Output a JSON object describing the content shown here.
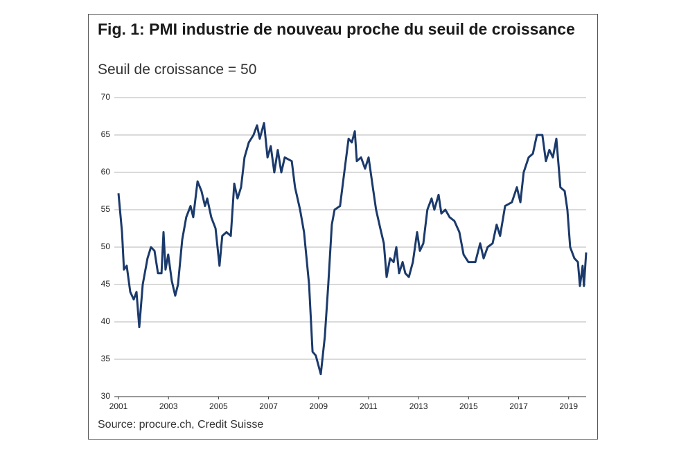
{
  "chart_data": {
    "type": "line",
    "title": "Fig. 1: PMI industrie de nouveau proche du seuil de croissance",
    "subtitle": "Seuil de croissance = 50",
    "source": "Source: procure.ch, Credit Suisse",
    "x": [
      2001.0,
      2001.14,
      2001.22,
      2001.33,
      2001.47,
      2001.61,
      2001.72,
      2001.83,
      2001.97,
      2002.16,
      2002.3,
      2002.44,
      2002.58,
      2002.72,
      2002.8,
      2002.88,
      2002.99,
      2003.13,
      2003.27,
      2003.38,
      2003.55,
      2003.71,
      2003.88,
      2003.99,
      2004.16,
      2004.32,
      2004.46,
      2004.55,
      2004.71,
      2004.88,
      2005.04,
      2005.15,
      2005.32,
      2005.49,
      2005.63,
      2005.76,
      2005.9,
      2006.04,
      2006.21,
      2006.4,
      2006.54,
      2006.65,
      2006.82,
      2006.96,
      2007.09,
      2007.23,
      2007.37,
      2007.51,
      2007.65,
      2007.93,
      2008.06,
      2008.26,
      2008.42,
      2008.62,
      2008.76,
      2008.89,
      2009.09,
      2009.25,
      2009.39,
      2009.53,
      2009.64,
      2009.86,
      2010.03,
      2010.2,
      2010.33,
      2010.45,
      2010.53,
      2010.7,
      2010.86,
      2011.0,
      2011.17,
      2011.3,
      2011.47,
      2011.61,
      2011.72,
      2011.86,
      2012.0,
      2012.11,
      2012.22,
      2012.36,
      2012.47,
      2012.61,
      2012.77,
      2012.94,
      2013.05,
      2013.19,
      2013.35,
      2013.52,
      2013.63,
      2013.8,
      2013.91,
      2014.07,
      2014.24,
      2014.43,
      2014.63,
      2014.8,
      2014.99,
      2015.27,
      2015.46,
      2015.6,
      2015.76,
      2015.96,
      2016.12,
      2016.26,
      2016.46,
      2016.73,
      2016.93,
      2017.07,
      2017.2,
      2017.4,
      2017.57,
      2017.73,
      2017.95,
      2018.09,
      2018.23,
      2018.37,
      2018.51,
      2018.67,
      2018.84,
      2018.95,
      2019.06,
      2019.23,
      2019.37,
      2019.45,
      2019.56,
      2019.61,
      2019.7
    ],
    "series": [
      {
        "name": "PMI",
        "color": "#1b3a6b",
        "values": [
          57.2,
          52,
          47,
          47.5,
          44,
          43,
          44,
          39.3,
          45,
          48.5,
          50,
          49.5,
          46.5,
          46.5,
          52,
          47,
          49,
          45.5,
          43.5,
          45,
          51,
          54,
          55.5,
          54,
          58.8,
          57.5,
          55.5,
          56.5,
          54,
          52.5,
          47.5,
          51.5,
          52,
          51.5,
          58.5,
          56.5,
          58,
          62,
          64,
          65,
          66.3,
          64.5,
          66.6,
          62,
          63.5,
          60,
          63,
          60,
          62,
          61.5,
          58,
          55,
          52,
          45,
          36,
          35.5,
          33,
          38,
          45,
          53,
          55,
          55.5,
          60,
          64.5,
          64,
          65.5,
          61.5,
          62,
          60.5,
          62,
          58,
          55,
          52.5,
          50.5,
          46,
          48.5,
          48,
          50,
          46.5,
          48,
          46.5,
          46,
          48,
          52,
          49.5,
          50.5,
          55,
          56.5,
          55,
          57,
          54.5,
          55,
          54,
          53.5,
          52,
          49,
          48,
          48,
          50.5,
          48.5,
          50,
          50.5,
          53,
          51.5,
          55.5,
          56,
          58,
          56,
          60,
          62,
          62.5,
          65,
          65,
          61.5,
          63,
          62,
          64.5,
          58,
          57.5,
          55,
          50,
          48.5,
          48,
          44.8,
          47.5,
          44.8,
          49.3
        ]
      }
    ],
    "xlim": [
      2001,
      2019.7
    ],
    "xticks": [
      2001,
      2003,
      2005,
      2007,
      2009,
      2011,
      2013,
      2015,
      2017,
      2019
    ],
    "ylim": [
      30,
      70
    ],
    "yticks": [
      30,
      35,
      40,
      45,
      50,
      55,
      60,
      65,
      70
    ],
    "grid": true
  }
}
